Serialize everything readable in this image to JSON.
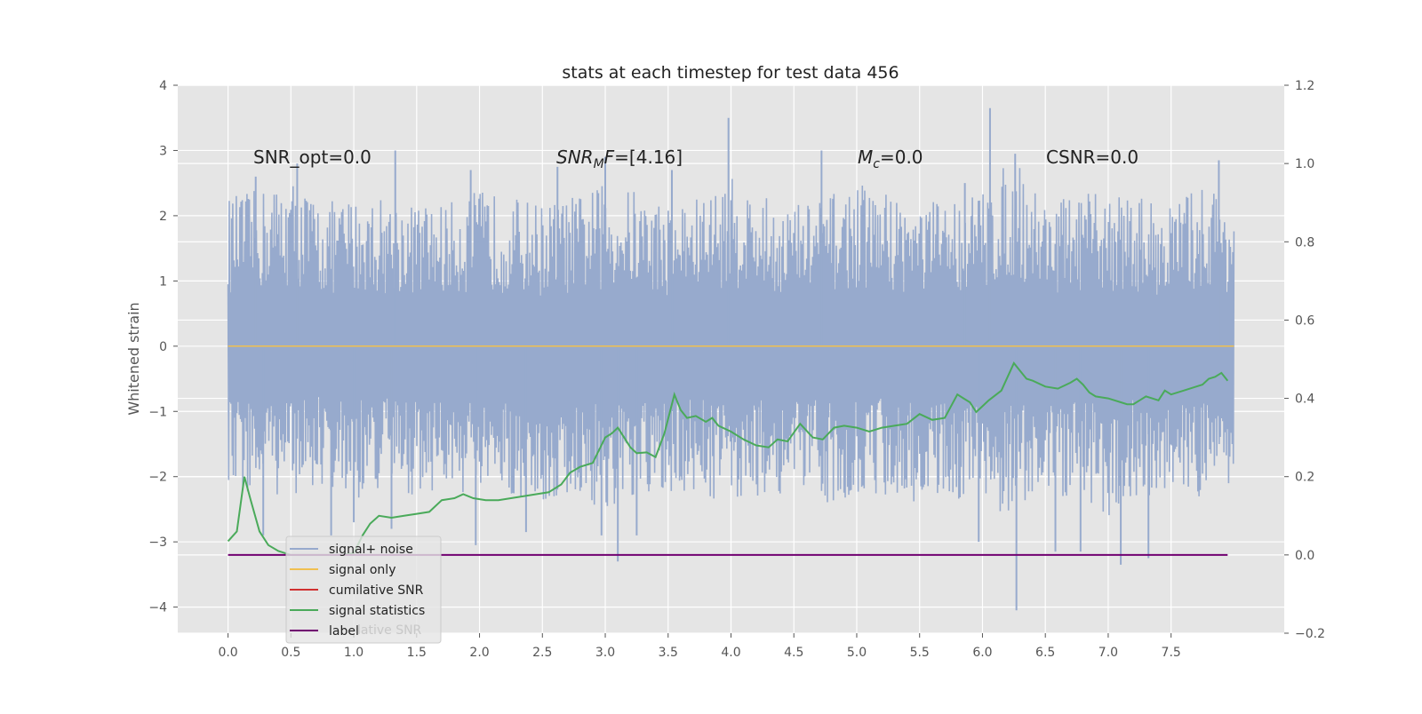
{
  "chart_data": {
    "type": "line",
    "title": "stats at each timestep for test data 456",
    "xlabel": "",
    "ylabel": "Whitened strain",
    "xlim": [
      -0.4,
      8.4
    ],
    "ylim": [
      -4.4,
      4.0
    ],
    "y2lim": [
      -0.2,
      1.2
    ],
    "grid": true,
    "legend_placement": "lower-left",
    "x_ticks": [
      "0.0",
      "0.5",
      "1.0",
      "1.5",
      "2.0",
      "2.5",
      "3.0",
      "3.5",
      "4.0",
      "4.5",
      "5.0",
      "5.5",
      "6.0",
      "6.5",
      "7.0",
      "7.5"
    ],
    "y_ticks": [
      "4",
      "3",
      "2",
      "1",
      "0",
      "−1",
      "−2",
      "−3",
      "−4"
    ],
    "y2_ticks": [
      "1.2",
      "1.0",
      "0.8",
      "0.6",
      "0.4",
      "0.2",
      "0.0",
      "−0.2"
    ],
    "annotations": [
      {
        "id": "snr-opt",
        "prefix": "SNR_opt=0.0",
        "sub": "",
        "suffix": ""
      },
      {
        "id": "snr-mf",
        "prefix": "SNR",
        "sub": "M",
        "suffix": "F=[4.16]"
      },
      {
        "id": "mc",
        "prefix": "M",
        "sub": "c",
        "suffix": "=0.0"
      },
      {
        "id": "csnr",
        "prefix": "CSNR=0.0",
        "sub": "",
        "suffix": ""
      }
    ],
    "legend": [
      "signal+ noise",
      "signal only",
      "cumilative SNR",
      "signal statistics",
      "label"
    ],
    "legend_ghost_text": "lative SNR",
    "colors": {
      "plot_bg": "#e5e5e5",
      "grid": "#ffffff",
      "noise": "#97aacd",
      "signal_only": "#f0c050",
      "cumulative_snr": "#d03030",
      "signal_statistics": "#4aaa5a",
      "label": "#700070"
    },
    "series": [
      {
        "name": "signal+ noise",
        "axis": "left",
        "envelope": {
          "x": [
            0.0,
            0.25,
            0.5,
            0.75,
            1.0,
            1.25,
            1.5,
            1.75,
            2.0,
            2.25,
            2.5,
            2.75,
            3.0,
            3.25,
            3.5,
            3.75,
            4.0,
            4.25,
            4.5,
            4.75,
            5.0,
            5.25,
            5.5,
            5.75,
            6.0,
            6.25,
            6.5,
            6.75,
            7.0,
            7.25,
            7.5,
            7.75,
            8.0
          ],
          "upper": [
            2.3,
            2.4,
            2.6,
            2.2,
            2.3,
            2.3,
            2.2,
            2.2,
            2.4,
            2.3,
            2.2,
            2.3,
            2.5,
            2.4,
            2.2,
            2.3,
            2.6,
            2.3,
            2.2,
            2.3,
            2.5,
            2.4,
            2.2,
            2.3,
            2.4,
            2.9,
            2.3,
            2.3,
            2.4,
            2.3,
            2.2,
            2.5,
            2.3
          ],
          "lower": [
            -2.3,
            -2.3,
            -2.3,
            -2.2,
            -2.4,
            -2.2,
            -2.3,
            -2.2,
            -2.4,
            -2.3,
            -2.5,
            -2.3,
            -2.6,
            -2.5,
            -2.3,
            -2.3,
            -2.4,
            -2.3,
            -2.3,
            -2.4,
            -2.3,
            -2.3,
            -2.4,
            -2.3,
            -2.5,
            -2.6,
            -2.3,
            -2.4,
            -2.6,
            -2.3,
            -2.4,
            -2.3,
            -2.3
          ]
        },
        "spikes": [
          {
            "x": 0.22,
            "y": 2.6
          },
          {
            "x": 0.55,
            "y": 2.8
          },
          {
            "x": 1.33,
            "y": 3.0
          },
          {
            "x": 1.93,
            "y": 2.7
          },
          {
            "x": 2.62,
            "y": 2.75
          },
          {
            "x": 3.0,
            "y": 2.9
          },
          {
            "x": 3.53,
            "y": 2.7
          },
          {
            "x": 3.98,
            "y": 3.5
          },
          {
            "x": 4.72,
            "y": 3.0
          },
          {
            "x": 5.86,
            "y": 2.5
          },
          {
            "x": 6.06,
            "y": 3.65
          },
          {
            "x": 6.26,
            "y": 2.95
          },
          {
            "x": 7.88,
            "y": 2.85
          },
          {
            "x": 0.28,
            "y": -2.9
          },
          {
            "x": 0.82,
            "y": -2.9
          },
          {
            "x": 1.0,
            "y": -2.7
          },
          {
            "x": 1.3,
            "y": -2.8
          },
          {
            "x": 1.97,
            "y": -3.05
          },
          {
            "x": 2.37,
            "y": -2.85
          },
          {
            "x": 2.97,
            "y": -2.9
          },
          {
            "x": 3.1,
            "y": -3.3
          },
          {
            "x": 3.25,
            "y": -2.9
          },
          {
            "x": 5.97,
            "y": -3.0
          },
          {
            "x": 6.27,
            "y": -4.05
          },
          {
            "x": 6.58,
            "y": -3.15
          },
          {
            "x": 6.78,
            "y": -3.15
          },
          {
            "x": 7.1,
            "y": -3.35
          },
          {
            "x": 7.32,
            "y": -3.25
          }
        ]
      },
      {
        "name": "signal only",
        "axis": "left",
        "x": [
          0.0,
          8.0
        ],
        "y": [
          0.0,
          0.0
        ]
      },
      {
        "name": "signal statistics",
        "axis": "right",
        "x": [
          0.0,
          0.07,
          0.13,
          0.18,
          0.25,
          0.32,
          0.4,
          0.5,
          0.6,
          0.7,
          0.8,
          0.9,
          1.0,
          1.07,
          1.13,
          1.2,
          1.3,
          1.4,
          1.5,
          1.6,
          1.7,
          1.8,
          1.87,
          1.95,
          2.05,
          2.15,
          2.25,
          2.35,
          2.45,
          2.55,
          2.65,
          2.72,
          2.8,
          2.9,
          3.0,
          3.05,
          3.1,
          3.2,
          3.25,
          3.33,
          3.4,
          3.47,
          3.55,
          3.6,
          3.65,
          3.72,
          3.8,
          3.85,
          3.9,
          4.0,
          4.1,
          4.2,
          4.3,
          4.37,
          4.45,
          4.55,
          4.65,
          4.73,
          4.82,
          4.9,
          5.0,
          5.1,
          5.2,
          5.3,
          5.4,
          5.5,
          5.6,
          5.7,
          5.8,
          5.85,
          5.9,
          5.95,
          6.0,
          6.05,
          6.15,
          6.25,
          6.3,
          6.35,
          6.4,
          6.5,
          6.6,
          6.7,
          6.75,
          6.8,
          6.85,
          6.9,
          7.0,
          7.1,
          7.15,
          7.2,
          7.25,
          7.3,
          7.35,
          7.4,
          7.45,
          7.5,
          7.6,
          7.7,
          7.75,
          7.8,
          7.85,
          7.9,
          7.95
        ],
        "y": [
          0.035,
          0.06,
          0.2,
          0.14,
          0.06,
          0.025,
          0.01,
          0.0,
          0.0,
          0.0,
          0.0,
          0.0,
          0.005,
          0.05,
          0.08,
          0.1,
          0.095,
          0.1,
          0.105,
          0.11,
          0.14,
          0.145,
          0.155,
          0.145,
          0.14,
          0.14,
          0.145,
          0.15,
          0.155,
          0.16,
          0.18,
          0.21,
          0.225,
          0.235,
          0.3,
          0.31,
          0.325,
          0.275,
          0.26,
          0.262,
          0.25,
          0.31,
          0.41,
          0.37,
          0.35,
          0.355,
          0.34,
          0.35,
          0.33,
          0.315,
          0.295,
          0.28,
          0.275,
          0.295,
          0.29,
          0.335,
          0.3,
          0.295,
          0.325,
          0.33,
          0.325,
          0.315,
          0.325,
          0.33,
          0.335,
          0.36,
          0.345,
          0.35,
          0.41,
          0.4,
          0.39,
          0.365,
          0.38,
          0.395,
          0.42,
          0.49,
          0.47,
          0.45,
          0.445,
          0.43,
          0.425,
          0.44,
          0.45,
          0.435,
          0.415,
          0.405,
          0.4,
          0.39,
          0.385,
          0.385,
          0.395,
          0.405,
          0.4,
          0.395,
          0.42,
          0.41,
          0.42,
          0.43,
          0.435,
          0.45,
          0.455,
          0.465,
          0.445
        ]
      },
      {
        "name": "label",
        "axis": "right",
        "x": [
          0.0,
          7.95
        ],
        "y": [
          0.0,
          0.0
        ]
      }
    ]
  }
}
